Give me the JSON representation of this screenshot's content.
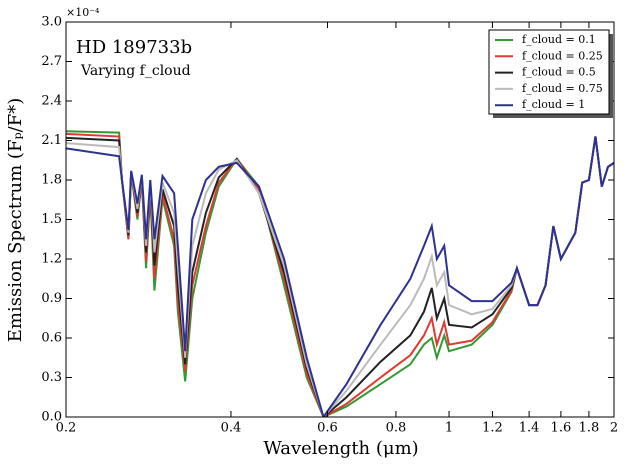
{
  "chart_data": {
    "type": "line",
    "title": "HD 189733b",
    "subtitle": "Varying f_cloud",
    "axis_multiplier": "×10⁻⁴",
    "xlabel": "Wavelength (μm)",
    "ylabel": "Emission Spectrum (Fₚ/F*)",
    "xscale": "log",
    "xlim": [
      0.2,
      2
    ],
    "xticks": [
      0.2,
      0.4,
      0.6,
      0.8,
      1,
      1.2,
      1.4,
      1.6,
      1.8,
      2
    ],
    "ylim": [
      0,
      3
    ],
    "yticks": [
      {
        "value": 0,
        "label": "0.0"
      },
      0.3,
      0.6,
      0.9,
      1.2,
      1.5,
      1.8,
      2.1,
      2.4,
      2.7,
      {
        "value": 3,
        "label": "3.0"
      }
    ],
    "legend": "upper right",
    "x": [
      0.2,
      0.25,
      0.253,
      0.26,
      0.263,
      0.27,
      0.275,
      0.28,
      0.285,
      0.29,
      0.3,
      0.315,
      0.32,
      0.33,
      0.34,
      0.36,
      0.38,
      0.41,
      0.45,
      0.5,
      0.55,
      0.59,
      0.65,
      0.75,
      0.85,
      0.9,
      0.93,
      0.95,
      0.98,
      1.0,
      1.1,
      1.2,
      1.3,
      1.33,
      1.4,
      1.45,
      1.5,
      1.55,
      1.6,
      1.7,
      1.75,
      1.8,
      1.85,
      1.9,
      1.95,
      2.0
    ],
    "series": [
      {
        "name": "f_cloud = 0.1",
        "color": "#339933",
        "values": [
          2.17,
          2.16,
          1.8,
          1.35,
          1.85,
          1.5,
          1.8,
          1.13,
          1.7,
          0.96,
          1.66,
          1.3,
          0.8,
          0.27,
          0.9,
          1.4,
          1.75,
          1.96,
          1.75,
          1.0,
          0.3,
          0.0,
          0.08,
          0.25,
          0.4,
          0.55,
          0.6,
          0.45,
          0.62,
          0.5,
          0.55,
          0.7,
          0.95,
          1.13,
          0.85,
          0.85,
          1.0,
          1.45,
          1.2,
          1.4,
          1.78,
          1.8,
          2.13,
          1.75,
          1.9,
          1.93
        ]
      },
      {
        "name": "f_cloud = 0.25",
        "color": "#e03a33",
        "values": [
          2.15,
          2.13,
          1.8,
          1.35,
          1.85,
          1.52,
          1.81,
          1.18,
          1.72,
          1.05,
          1.69,
          1.35,
          0.88,
          0.35,
          1.0,
          1.45,
          1.78,
          1.96,
          1.73,
          1.05,
          0.33,
          0.0,
          0.1,
          0.3,
          0.47,
          0.62,
          0.75,
          0.55,
          0.72,
          0.55,
          0.58,
          0.72,
          0.96,
          1.13,
          0.85,
          0.85,
          1.0,
          1.45,
          1.2,
          1.4,
          1.78,
          1.8,
          2.13,
          1.75,
          1.9,
          1.93
        ]
      },
      {
        "name": "f_cloud = 0.5",
        "color": "#222222",
        "values": [
          2.12,
          2.1,
          1.8,
          1.38,
          1.86,
          1.55,
          1.82,
          1.25,
          1.75,
          1.15,
          1.73,
          1.45,
          1.0,
          0.4,
          1.1,
          1.55,
          1.82,
          1.96,
          1.7,
          1.1,
          0.37,
          0.0,
          0.15,
          0.42,
          0.62,
          0.8,
          0.98,
          0.75,
          0.9,
          0.7,
          0.68,
          0.78,
          0.98,
          1.13,
          0.85,
          0.85,
          1.0,
          1.45,
          1.2,
          1.4,
          1.78,
          1.8,
          2.13,
          1.75,
          1.9,
          1.93
        ]
      },
      {
        "name": "f_cloud = 0.75",
        "color": "#bbbbbb",
        "values": [
          2.08,
          2.05,
          1.8,
          1.4,
          1.86,
          1.58,
          1.83,
          1.3,
          1.78,
          1.25,
          1.78,
          1.55,
          1.15,
          0.45,
          1.3,
          1.7,
          1.88,
          1.95,
          1.7,
          1.15,
          0.4,
          0.0,
          0.2,
          0.55,
          0.85,
          1.05,
          1.22,
          1.0,
          1.1,
          0.85,
          0.78,
          0.82,
          1.0,
          1.13,
          0.85,
          0.85,
          1.0,
          1.45,
          1.2,
          1.4,
          1.78,
          1.8,
          2.13,
          1.75,
          1.9,
          1.93
        ]
      },
      {
        "name": "f_cloud = 1",
        "color": "#2e3192",
        "values": [
          2.04,
          1.98,
          1.8,
          1.42,
          1.87,
          1.62,
          1.84,
          1.35,
          1.8,
          1.35,
          1.83,
          1.7,
          1.3,
          0.5,
          1.5,
          1.8,
          1.9,
          1.93,
          1.75,
          1.2,
          0.45,
          0.0,
          0.25,
          0.7,
          1.05,
          1.3,
          1.45,
          1.2,
          1.3,
          1.0,
          0.88,
          0.88,
          1.02,
          1.13,
          0.85,
          0.85,
          1.0,
          1.45,
          1.2,
          1.4,
          1.78,
          1.8,
          2.13,
          1.75,
          1.9,
          1.93
        ]
      }
    ]
  }
}
